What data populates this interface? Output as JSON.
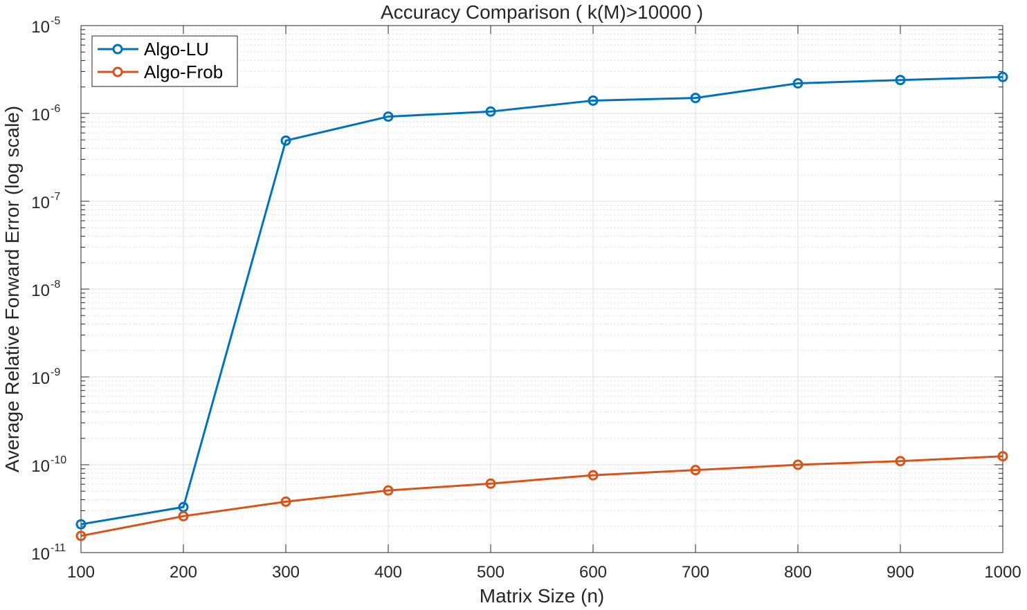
{
  "chart_data": {
    "type": "line",
    "title": "Accuracy Comparison ( k(M)>10000 )",
    "xlabel": "Matrix Size (n)",
    "ylabel": "Average Relative Forward Error (log scale)",
    "x": [
      100,
      200,
      300,
      400,
      500,
      600,
      700,
      800,
      900,
      1000
    ],
    "xlim": [
      100,
      1000
    ],
    "x_ticks": [
      "100",
      "200",
      "300",
      "400",
      "500",
      "600",
      "700",
      "800",
      "900",
      "1000"
    ],
    "y_scale": "log",
    "ylim": [
      1e-11,
      1e-05
    ],
    "y_ticks": [
      {
        "base": "10",
        "exp": "-11"
      },
      {
        "base": "10",
        "exp": "-10"
      },
      {
        "base": "10",
        "exp": "-9"
      },
      {
        "base": "10",
        "exp": "-8"
      },
      {
        "base": "10",
        "exp": "-7"
      },
      {
        "base": "10",
        "exp": "-6"
      },
      {
        "base": "10",
        "exp": "-5"
      }
    ],
    "grid": true,
    "legend_position": "top-left",
    "series": [
      {
        "name": "Algo-LU",
        "color": "#0072BD",
        "marker": "circle",
        "values": [
          2.1e-11,
          3.3e-11,
          4.9e-07,
          9.2e-07,
          1.05e-06,
          1.4e-06,
          1.5e-06,
          2.2e-06,
          2.4e-06,
          2.6e-06
        ]
      },
      {
        "name": "Algo-Frob",
        "color": "#D95319",
        "marker": "circle",
        "values": [
          1.55e-11,
          2.6e-11,
          3.8e-11,
          5.1e-11,
          6.1e-11,
          7.6e-11,
          8.7e-11,
          1e-10,
          1.1e-10,
          1.25e-10
        ]
      }
    ]
  }
}
